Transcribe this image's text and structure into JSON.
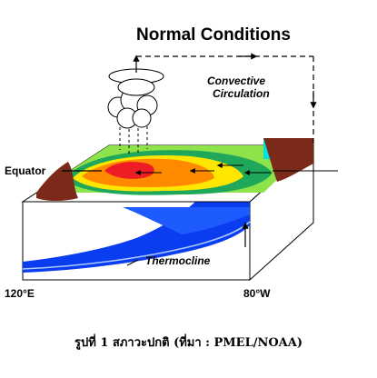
{
  "diagram": {
    "title": "Normal Conditions",
    "convective_line1": "Convective",
    "convective_line2": "Circulation",
    "equator_label": "Equator",
    "thermocline_label": "Thermocline",
    "west_longitude_label": "120°E",
    "east_longitude_label": "80°W",
    "caption": "รูปที่ 1 สภาวะปกติ (ที่มา : PMEL/NOAA)"
  },
  "colors": {
    "warm_core": "#ee1c24",
    "warm": "#ff8a00",
    "mild": "#ffe600",
    "cool": "#8ee24a",
    "cooler": "#1fa85a",
    "cold": "#00e0e0",
    "land": "#7b2a1a",
    "ocean_blue": "#0a3cf0"
  },
  "icons": {
    "cloud": "cumulus-cloud-icon",
    "arrows": "flow-arrow-icon"
  }
}
